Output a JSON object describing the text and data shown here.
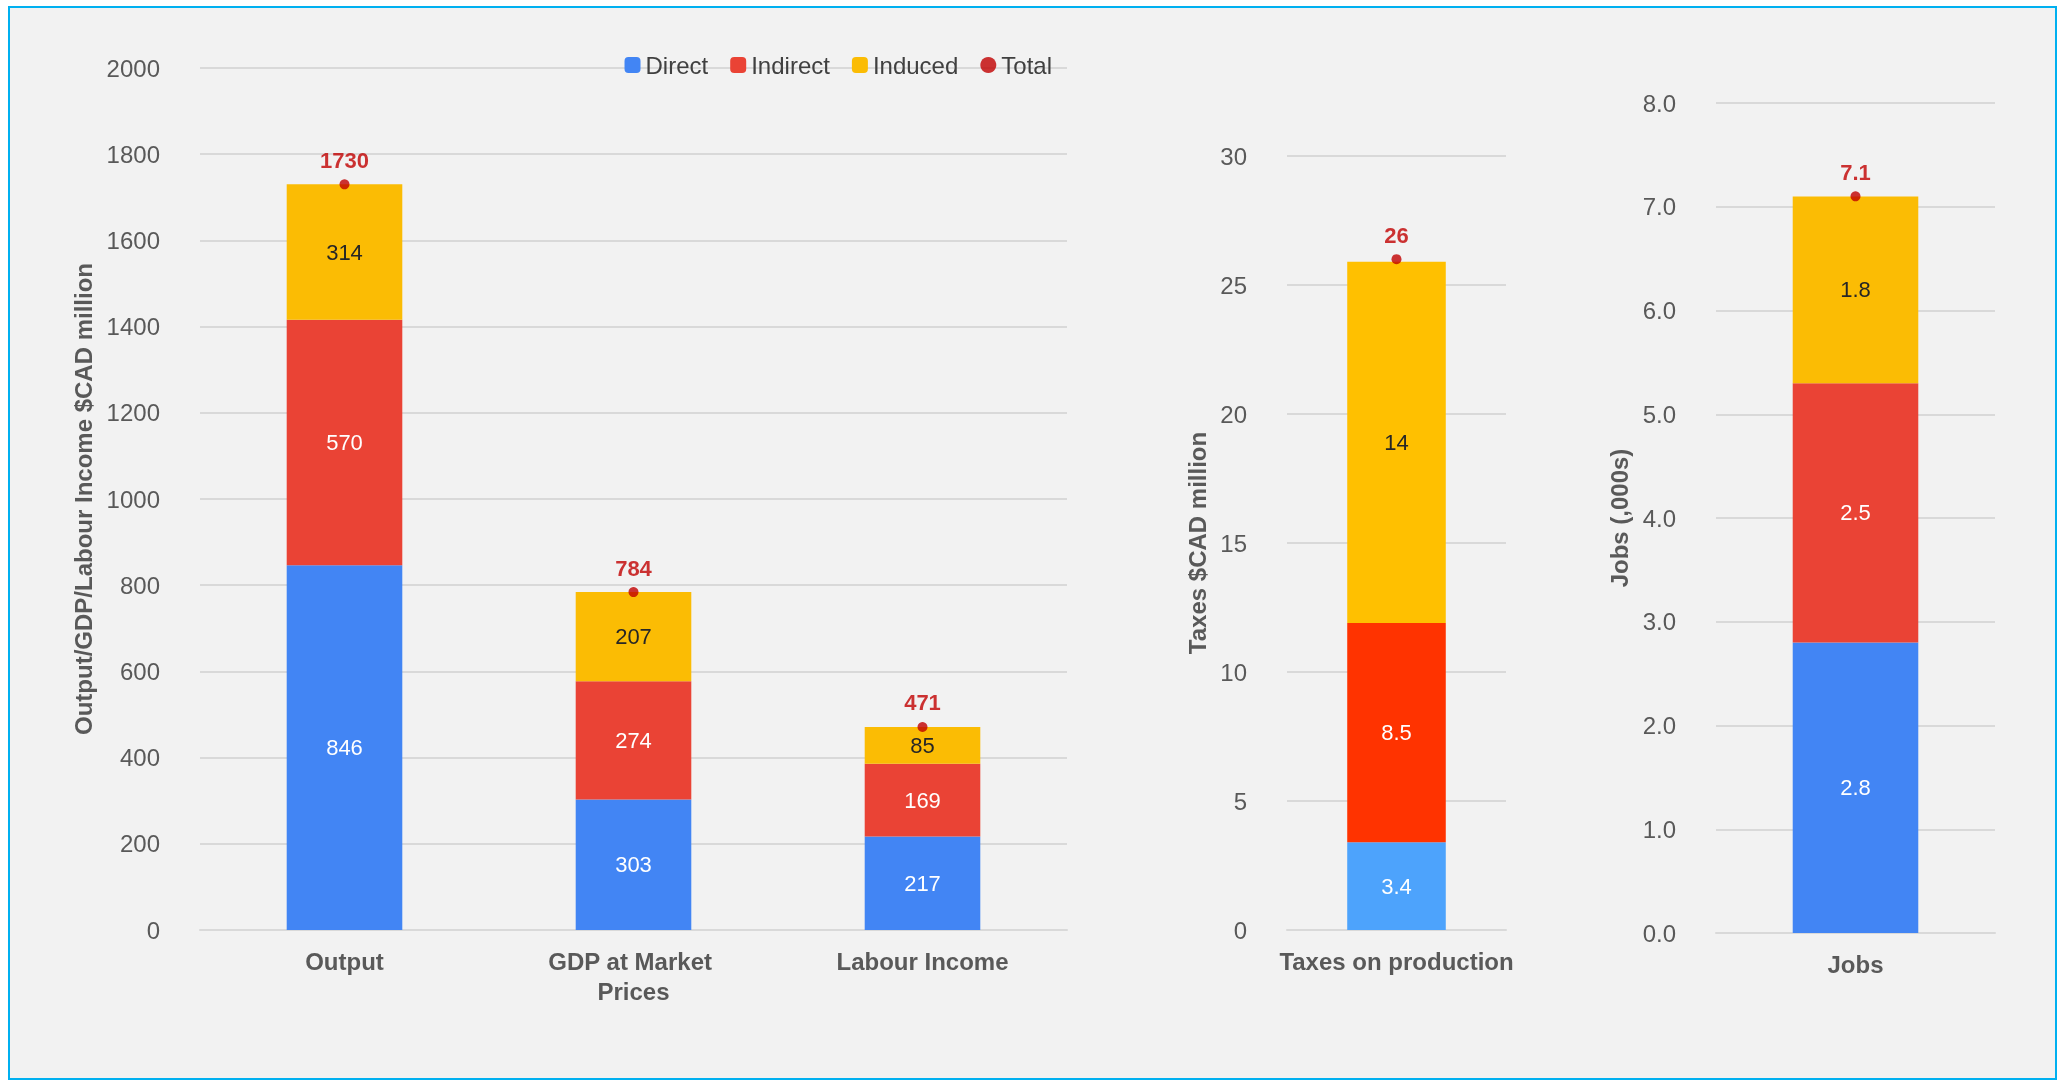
{
  "chart_data": [
    {
      "type": "bar",
      "ylabel": "Output/GDP/Labour Income $CAD million",
      "categories": [
        "Output",
        "GDP at Market Prices",
        "Labour Income"
      ],
      "stacked": true,
      "data_labels": true,
      "grid": "y",
      "legend": "top right",
      "marker": "circle",
      "ylim": [
        0,
        2000
      ],
      "yticks": [
        0,
        200,
        400,
        600,
        800,
        1000,
        1200,
        1400,
        1600,
        1800,
        2000
      ],
      "series": [
        {
          "name": "Direct",
          "color": "#4285f4",
          "values": [
            846,
            303,
            217
          ]
        },
        {
          "name": "Indirect",
          "color": "#ea4335",
          "values": [
            570,
            274,
            169
          ]
        },
        {
          "name": "Induced",
          "color": "#fbbc04",
          "values": [
            314,
            207,
            85
          ]
        },
        {
          "name": "Total",
          "type": "scatter",
          "color": "#c00000",
          "x": [
            "Output",
            "GDP at Market Prices",
            "Labour Income"
          ],
          "values": [
            1730,
            784,
            471
          ]
        }
      ]
    },
    {
      "type": "bar",
      "ylabel": "Taxes $CAD million",
      "categories": [
        "Taxes on production"
      ],
      "stacked": true,
      "data_labels": true,
      "grid": "y",
      "marker": "circle",
      "ylim": [
        0,
        30
      ],
      "yticks": [
        0,
        5,
        10,
        15,
        20,
        25,
        30
      ],
      "series": [
        {
          "color": "#4da3fc",
          "values": [
            3.4
          ]
        },
        {
          "color": "#ff3300",
          "values": [
            8.5
          ]
        },
        {
          "color": "#ffc000",
          "values": [
            14
          ]
        },
        {
          "type": "scatter",
          "color": "#c00000",
          "x": [
            "Taxes on production"
          ],
          "values": [
            26
          ]
        }
      ]
    },
    {
      "type": "bar",
      "ylabel": "Jobs (,000s)",
      "categories": [
        "Jobs"
      ],
      "stacked": true,
      "data_labels": true,
      "grid": "y",
      "marker": "circle",
      "ylim": [
        0,
        8
      ],
      "yticks": [
        {
          "value": 0,
          "label": "0.0"
        },
        {
          "value": 1,
          "label": "1.0"
        },
        {
          "value": 2,
          "label": "2.0"
        },
        {
          "value": 3,
          "label": "3.0"
        },
        {
          "value": 4,
          "label": "4.0"
        },
        {
          "value": 5,
          "label": "5.0"
        },
        {
          "value": 6,
          "label": "6.0"
        },
        {
          "value": 7,
          "label": "7.0"
        },
        {
          "value": 8,
          "label": "8.0"
        }
      ],
      "series": [
        {
          "color": "#4285f4",
          "values": [
            2.8
          ]
        },
        {
          "color": "#ea4335",
          "values": [
            2.5
          ]
        },
        {
          "color": "#fbbc04",
          "values": [
            1.8
          ]
        },
        {
          "type": "scatter",
          "color": "#c00000",
          "x": [
            "Jobs"
          ],
          "values": [
            7.1
          ]
        }
      ]
    }
  ]
}
